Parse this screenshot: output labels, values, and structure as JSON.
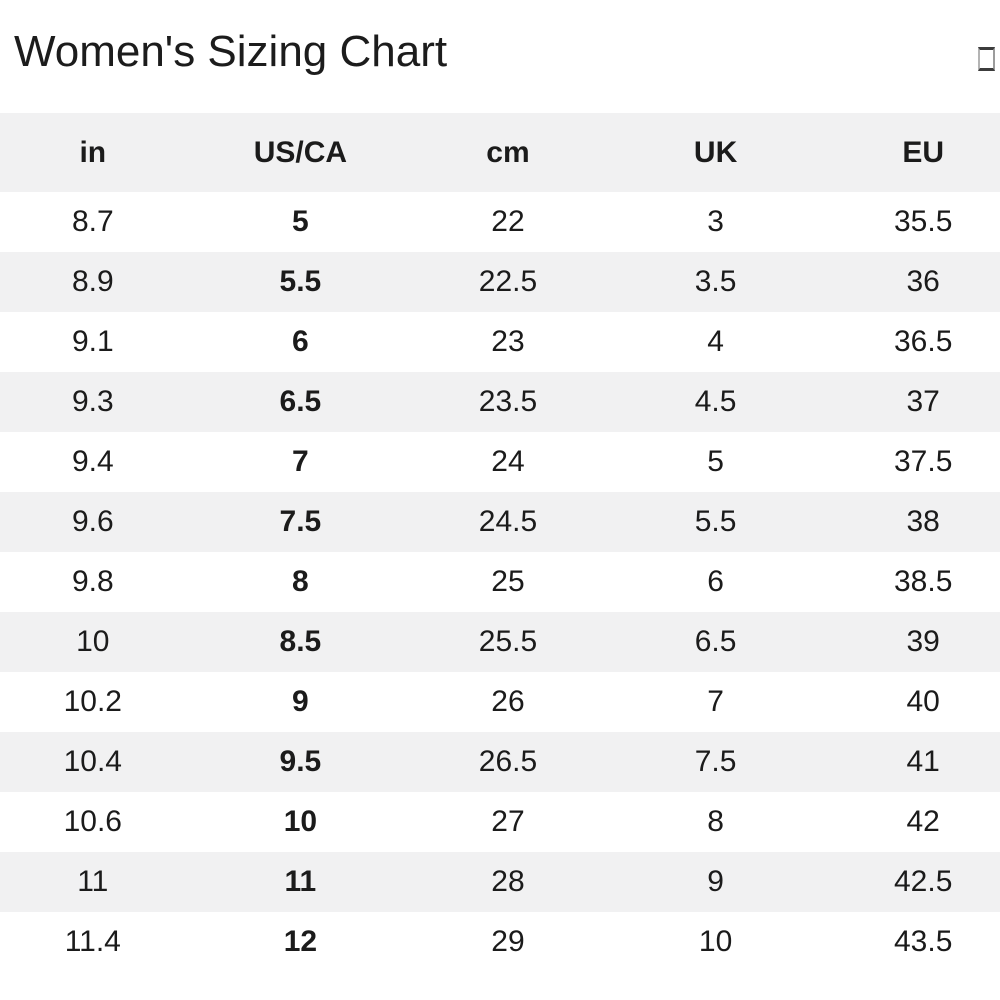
{
  "page": {
    "title": "Women's Sizing Chart",
    "title_icon": "missing-glyph-box"
  },
  "colors": {
    "background": "#ffffff",
    "stripe": "#f1f1f2",
    "text": "#1b1b1b"
  },
  "chart_data": {
    "type": "table",
    "title": "Women's Sizing Chart",
    "columns": [
      "in",
      "US/CA",
      "cm",
      "UK",
      "EU"
    ],
    "bold_column": "US/CA",
    "layout_hint": "header row gray, body rows alternate white/gray, all cells center-aligned",
    "rows": [
      [
        "8.7",
        "5",
        "22",
        "3",
        "35.5"
      ],
      [
        "8.9",
        "5.5",
        "22.5",
        "3.5",
        "36"
      ],
      [
        "9.1",
        "6",
        "23",
        "4",
        "36.5"
      ],
      [
        "9.3",
        "6.5",
        "23.5",
        "4.5",
        "37"
      ],
      [
        "9.4",
        "7",
        "24",
        "5",
        "37.5"
      ],
      [
        "9.6",
        "7.5",
        "24.5",
        "5.5",
        "38"
      ],
      [
        "9.8",
        "8",
        "25",
        "6",
        "38.5"
      ],
      [
        "10",
        "8.5",
        "25.5",
        "6.5",
        "39"
      ],
      [
        "10.2",
        "9",
        "26",
        "7",
        "40"
      ],
      [
        "10.4",
        "9.5",
        "26.5",
        "7.5",
        "41"
      ],
      [
        "10.6",
        "10",
        "27",
        "8",
        "42"
      ],
      [
        "11",
        "11",
        "28",
        "9",
        "42.5"
      ],
      [
        "11.4",
        "12",
        "29",
        "10",
        "43.5"
      ]
    ]
  }
}
